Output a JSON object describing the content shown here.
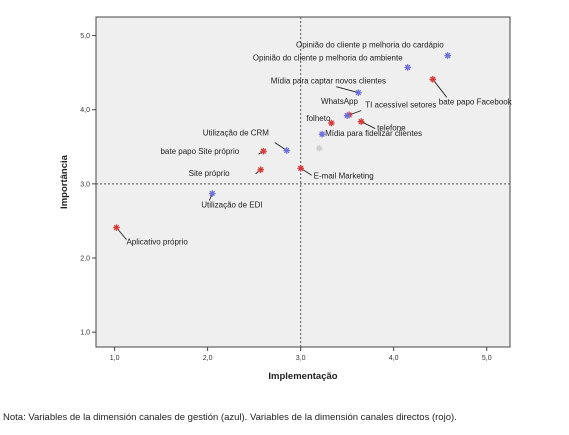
{
  "chart_data": {
    "type": "scatter",
    "xlabel": "Implementação",
    "ylabel": "Importância",
    "xlim": [
      0.8,
      5.25
    ],
    "ylim": [
      0.8,
      5.25
    ],
    "x_ticks": [
      "1,0",
      "2,0",
      "3,0",
      "4,0",
      "5,0"
    ],
    "y_ticks": [
      "1,0",
      "2,0",
      "3,0",
      "4,0",
      "5,0"
    ],
    "reference_lines": {
      "x": 3.0,
      "y": 3.0
    },
    "background": "#efefef",
    "colors": {
      "blue": "#6f6fdc",
      "red": "#d63a3a"
    },
    "points": [
      {
        "label": "Opinião do cliente p melhoria do cardápio",
        "x": 4.58,
        "y": 4.73,
        "color": "blue"
      },
      {
        "label": "Opinião do cliente p melhoria do ambiente",
        "x": 4.15,
        "y": 4.57,
        "color": "blue"
      },
      {
        "label": "bate papo Facebook",
        "x": 4.42,
        "y": 4.41,
        "color": "red"
      },
      {
        "label": "Mídia para captar novos clientes",
        "x": 3.62,
        "y": 4.23,
        "color": "blue"
      },
      {
        "label": "WhatsApp",
        "x": 3.52,
        "y": 3.93,
        "color": "red"
      },
      {
        "label": "TI acessível setores",
        "x": 3.5,
        "y": 3.92,
        "color": "blue"
      },
      {
        "label": "folheto",
        "x": 3.33,
        "y": 3.82,
        "color": "red"
      },
      {
        "label": "telefone",
        "x": 3.65,
        "y": 3.84,
        "color": "red"
      },
      {
        "label": "Mídia para fidelizar clientes",
        "x": 3.23,
        "y": 3.67,
        "color": "blue"
      },
      {
        "label": "",
        "x": 3.2,
        "y": 3.48,
        "color": "grey"
      },
      {
        "label": "Utilização de CRM",
        "x": 2.85,
        "y": 3.45,
        "color": "blue"
      },
      {
        "label": "bate papo Site próprio",
        "x": 2.6,
        "y": 3.44,
        "color": "red"
      },
      {
        "label": "E-mail Marketing",
        "x": 3.0,
        "y": 3.21,
        "color": "red"
      },
      {
        "label": "Site próprio",
        "x": 2.57,
        "y": 3.19,
        "color": "red"
      },
      {
        "label": "Utilização de EDI",
        "x": 2.05,
        "y": 2.87,
        "color": "blue"
      },
      {
        "label": "Aplicativo próprio",
        "x": 1.02,
        "y": 2.41,
        "color": "red"
      }
    ]
  },
  "note": "Nota: Variables de la dimensión canales de gestión (azul). Variables de la dimensión canales directos (rojo)."
}
